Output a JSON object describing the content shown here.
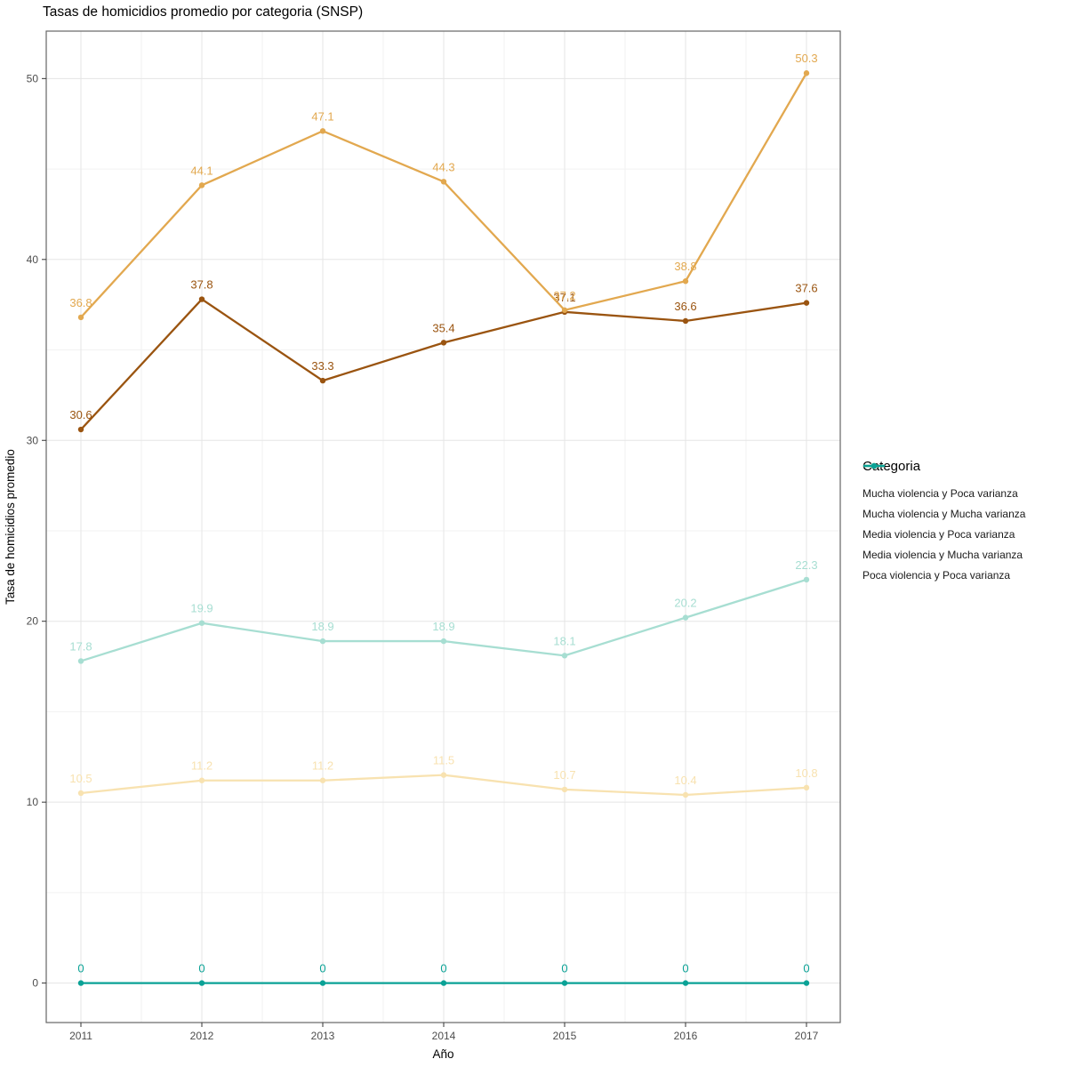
{
  "chart_data": {
    "type": "line",
    "title": "Tasas de homicidios promedio por categoria (SNSP)",
    "xlabel": "Año",
    "ylabel": "Tasa de homicidios promedio",
    "x": [
      2011,
      2012,
      2013,
      2014,
      2015,
      2016,
      2017
    ],
    "yticks": [
      0,
      10,
      20,
      30,
      40,
      50
    ],
    "ylim": [
      -2.2,
      52.6
    ],
    "grid": true,
    "legend_position": "right",
    "legend_title": "Categoria",
    "series": [
      {
        "name": "Mucha violencia y Poca varianza",
        "color": "#9A5410",
        "values": [
          30.6,
          37.8,
          33.3,
          35.4,
          37.1,
          36.6,
          37.6
        ]
      },
      {
        "name": "Mucha violencia y Mucha varianza",
        "color": "#E2A84F",
        "values": [
          36.8,
          44.1,
          47.1,
          44.3,
          37.2,
          38.8,
          50.3
        ]
      },
      {
        "name": "Media violencia y Poca varianza",
        "color": "#F8E2B0",
        "values": [
          10.5,
          11.2,
          11.2,
          11.5,
          10.7,
          10.4,
          10.8
        ]
      },
      {
        "name": "Media violencia y Mucha varianza",
        "color": "#A7DED2",
        "values": [
          17.8,
          19.9,
          18.9,
          18.9,
          18.1,
          20.2,
          22.3
        ]
      },
      {
        "name": "Poca violencia y Poca varianza",
        "color": "#0AA296",
        "values": [
          0,
          0,
          0,
          0,
          0,
          0,
          0
        ]
      }
    ],
    "theme": {
      "grid_major": "#E5E5E5",
      "grid_minor": "#F2F2F2",
      "panel_border": "#666666",
      "tick_color": "#333333",
      "axis_text": "#4D4D4D"
    }
  }
}
